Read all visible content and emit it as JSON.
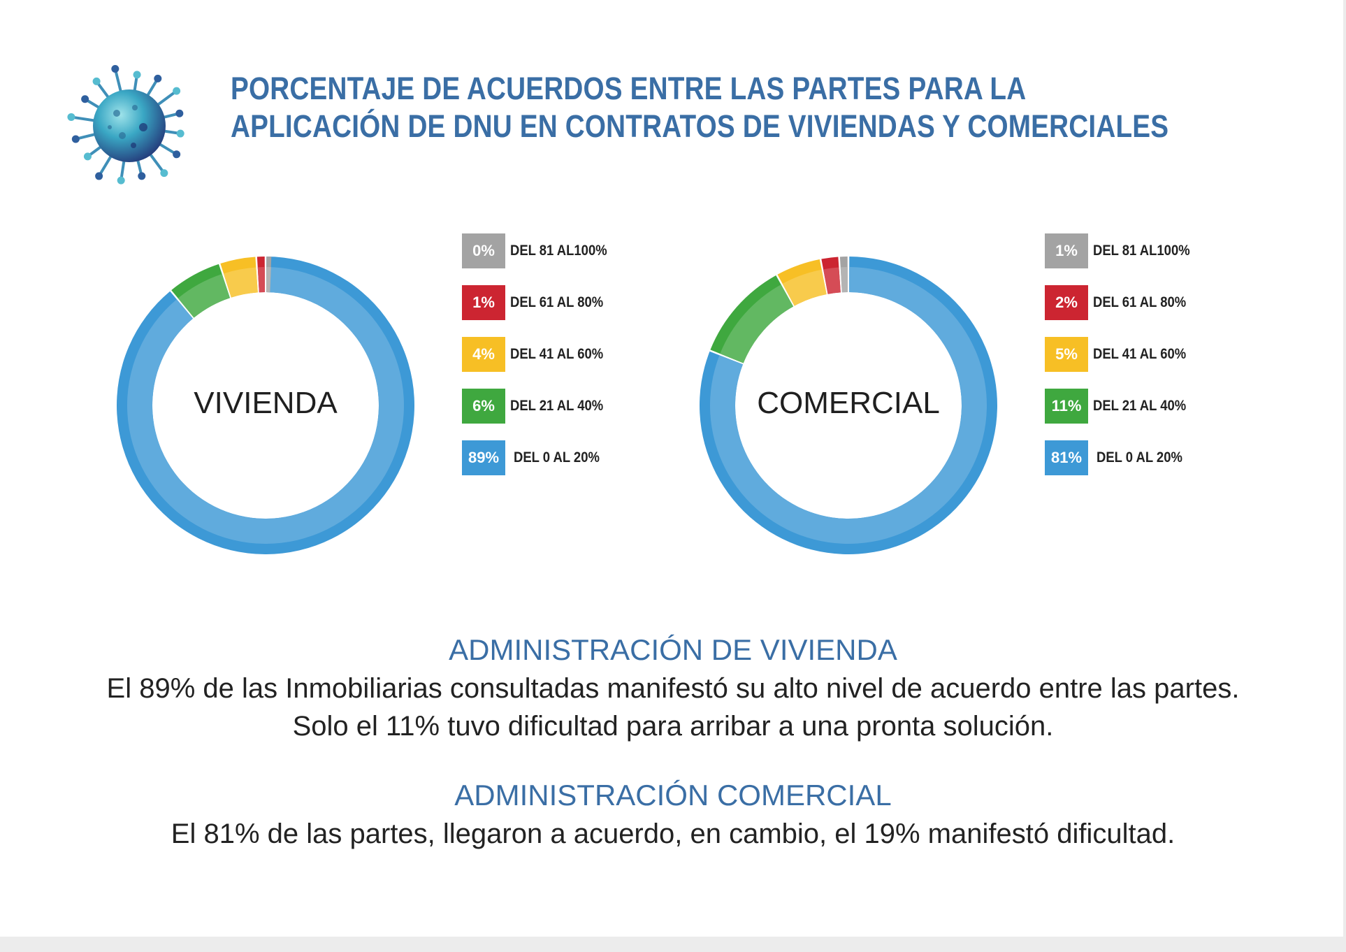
{
  "title": {
    "line1": "PORCENTAJE DE ACUERDOS ENTRE LAS PARTES PARA LA",
    "line2": "APLICACIÓN DE DNU EN CONTRATOS DE VIVIENDAS Y COMERCIALES"
  },
  "colors": {
    "title": "#3a6ea5",
    "gray": "#a3a3a3",
    "red": "#cc2531",
    "yellow": "#f7bf25",
    "green": "#3fa83f",
    "blue": "#3d99d6"
  },
  "icon": "virus-icon",
  "chart_data": [
    {
      "type": "pie",
      "variant": "donut",
      "center_label": "VIVIENDA",
      "slices": [
        {
          "label": "DEL 81 AL100%",
          "value": 0,
          "value_label": "0%",
          "color": "#a3a3a3"
        },
        {
          "label": "DEL 61 AL 80%",
          "value": 1,
          "value_label": "1%",
          "color": "#cc2531"
        },
        {
          "label": "DEL 41 AL 60%",
          "value": 4,
          "value_label": "4%",
          "color": "#f7bf25"
        },
        {
          "label": "DEL 21 AL 40%",
          "value": 6,
          "value_label": "6%",
          "color": "#3fa83f"
        },
        {
          "label": "DEL 0 AL 20%",
          "value": 89,
          "value_label": "89%",
          "color": "#3d99d6"
        }
      ],
      "legend_position": "right"
    },
    {
      "type": "pie",
      "variant": "donut",
      "center_label": "COMERCIAL",
      "slices": [
        {
          "label": "DEL 81 AL100%",
          "value": 1,
          "value_label": "1%",
          "color": "#a3a3a3"
        },
        {
          "label": "DEL 61 AL 80%",
          "value": 2,
          "value_label": "2%",
          "color": "#cc2531"
        },
        {
          "label": "DEL 41 AL 60%",
          "value": 5,
          "value_label": "5%",
          "color": "#f7bf25"
        },
        {
          "label": "DEL 21 AL 40%",
          "value": 11,
          "value_label": "11%",
          "color": "#3fa83f"
        },
        {
          "label": "DEL 0 AL 20%",
          "value": 81,
          "value_label": "81%",
          "color": "#3d99d6"
        }
      ],
      "legend_position": "right"
    }
  ],
  "sections": [
    {
      "heading": "ADMINISTRACIÓN DE VIVIENDA",
      "line1": "El 89% de las Inmobiliarias consultadas manifestó su alto nivel de acuerdo entre las partes.",
      "line2": "Solo el 11% tuvo dificultad para arribar a una pronta solución."
    },
    {
      "heading": "ADMINISTRACIÓN COMERCIAL",
      "line1": "El 81% de las partes, llegaron a acuerdo, en cambio, el 19% manifestó dificultad."
    }
  ]
}
